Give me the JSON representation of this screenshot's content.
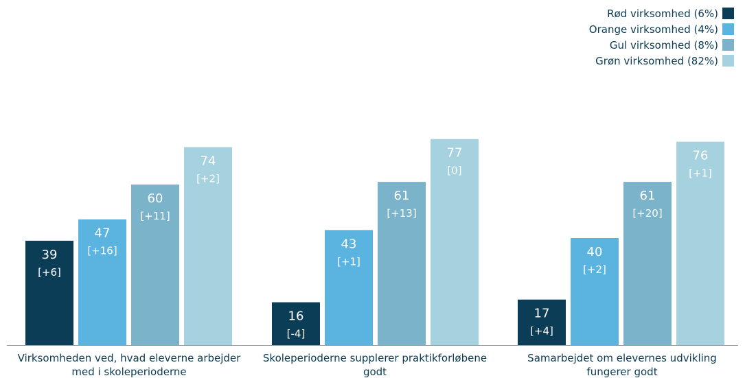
{
  "chart_data": {
    "type": "bar",
    "categories": [
      [
        "Virksomheden ved, hvad eleverne arbejder",
        "med i skoleperioderne"
      ],
      [
        "Skoleperioderne supplerer praktikforløbene",
        "godt"
      ],
      [
        "Samarbejdet om elevernes udvikling",
        "fungerer godt"
      ]
    ],
    "series": [
      {
        "name": "Rød virksomhed (6%)",
        "color": "#0c3d56",
        "values": [
          39,
          16,
          17
        ],
        "changes": [
          "[+6]",
          "[-4]",
          "[+4]"
        ]
      },
      {
        "name": "Orange virksomhed (4%)",
        "color": "#5bb4e0",
        "values": [
          47,
          43,
          40
        ],
        "changes": [
          "[+16]",
          "[+1]",
          "[+2]"
        ]
      },
      {
        "name": "Gul virksomhed (8%)",
        "color": "#7bb3ca",
        "values": [
          60,
          61,
          61
        ],
        "changes": [
          "[+11]",
          "[+13]",
          "[+20]"
        ]
      },
      {
        "name": "Grøn virksomhed (82%)",
        "color": "#a6d1df",
        "values": [
          74,
          77,
          76
        ],
        "changes": [
          "[+2]",
          "[0]",
          "[+1]"
        ]
      }
    ],
    "ylim": [
      0,
      100
    ],
    "legend_position": "top-right",
    "grid": false
  }
}
